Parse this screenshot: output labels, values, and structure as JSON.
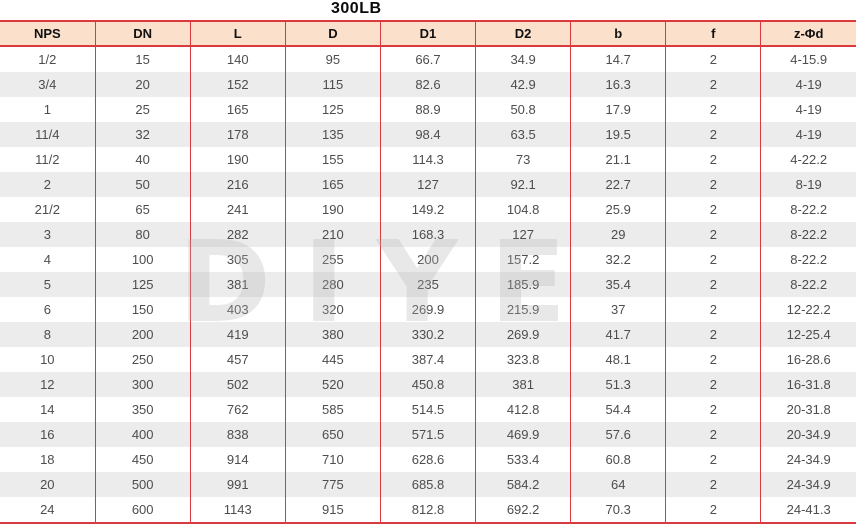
{
  "title": "300LB",
  "watermark": "DIYE",
  "colors": {
    "border_red": "#d93a3e",
    "header_bg": "#fbe0cc",
    "row_alt_bg": "#ececec",
    "body_text": "#4d4d4d",
    "header_text": "#111111"
  },
  "table": {
    "columns": [
      "NPS",
      "DN",
      "L",
      "D",
      "D1",
      "D2",
      "b",
      "f",
      "z-Φd"
    ],
    "rows": [
      [
        "1/2",
        "15",
        "140",
        "95",
        "66.7",
        "34.9",
        "14.7",
        "2",
        "4-15.9"
      ],
      [
        "3/4",
        "20",
        "152",
        "115",
        "82.6",
        "42.9",
        "16.3",
        "2",
        "4-19"
      ],
      [
        "1",
        "25",
        "165",
        "125",
        "88.9",
        "50.8",
        "17.9",
        "2",
        "4-19"
      ],
      [
        "11/4",
        "32",
        "178",
        "135",
        "98.4",
        "63.5",
        "19.5",
        "2",
        "4-19"
      ],
      [
        "11/2",
        "40",
        "190",
        "155",
        "114.3",
        "73",
        "21.1",
        "2",
        "4-22.2"
      ],
      [
        "2",
        "50",
        "216",
        "165",
        "127",
        "92.1",
        "22.7",
        "2",
        "8-19"
      ],
      [
        "21/2",
        "65",
        "241",
        "190",
        "149.2",
        "104.8",
        "25.9",
        "2",
        "8-22.2"
      ],
      [
        "3",
        "80",
        "282",
        "210",
        "168.3",
        "127",
        "29",
        "2",
        "8-22.2"
      ],
      [
        "4",
        "100",
        "305",
        "255",
        "200",
        "157.2",
        "32.2",
        "2",
        "8-22.2"
      ],
      [
        "5",
        "125",
        "381",
        "280",
        "235",
        "185.9",
        "35.4",
        "2",
        "8-22.2"
      ],
      [
        "6",
        "150",
        "403",
        "320",
        "269.9",
        "215.9",
        "37",
        "2",
        "12-22.2"
      ],
      [
        "8",
        "200",
        "419",
        "380",
        "330.2",
        "269.9",
        "41.7",
        "2",
        "12-25.4"
      ],
      [
        "10",
        "250",
        "457",
        "445",
        "387.4",
        "323.8",
        "48.1",
        "2",
        "16-28.6"
      ],
      [
        "12",
        "300",
        "502",
        "520",
        "450.8",
        "381",
        "51.3",
        "2",
        "16-31.8"
      ],
      [
        "14",
        "350",
        "762",
        "585",
        "514.5",
        "412.8",
        "54.4",
        "2",
        "20-31.8"
      ],
      [
        "16",
        "400",
        "838",
        "650",
        "571.5",
        "469.9",
        "57.6",
        "2",
        "20-34.9"
      ],
      [
        "18",
        "450",
        "914",
        "710",
        "628.6",
        "533.4",
        "60.8",
        "2",
        "24-34.9"
      ],
      [
        "20",
        "500",
        "991",
        "775",
        "685.8",
        "584.2",
        "64",
        "2",
        "24-34.9"
      ],
      [
        "24",
        "600",
        "1143",
        "915",
        "812.8",
        "692.2",
        "70.3",
        "2",
        "24-41.3"
      ]
    ]
  }
}
